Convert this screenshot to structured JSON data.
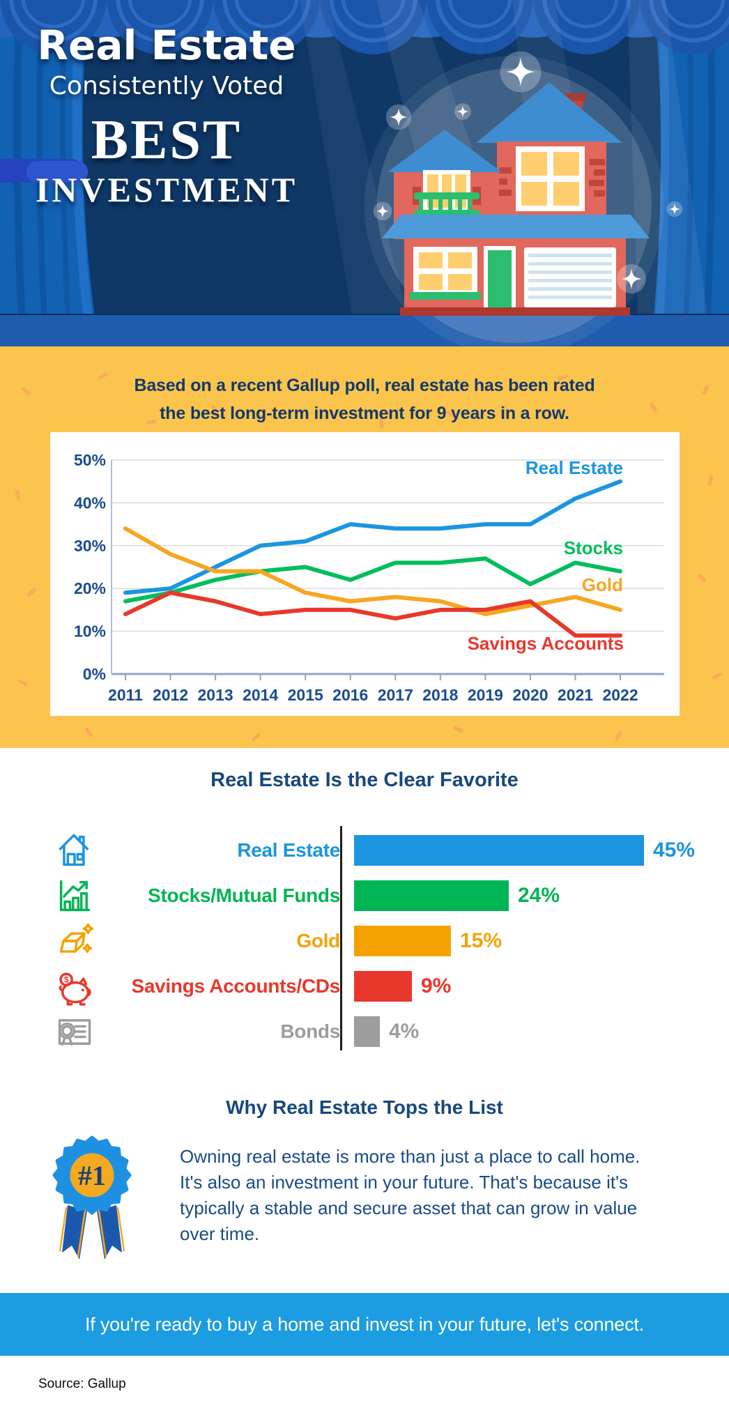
{
  "header": {
    "title_line1": "Real Estate",
    "title_line2": "Consistently Voted",
    "title_line3": "BEST",
    "title_line4": "INVESTMENT"
  },
  "poll": {
    "headline_line1": "Based on a recent Gallup poll, real estate has been rated",
    "headline_line2": "the best long-term investment for 9 years in a row."
  },
  "chart_data": [
    {
      "type": "line",
      "title": "Best long-term investment, Gallup poll trend",
      "x": [
        2011,
        2012,
        2013,
        2014,
        2015,
        2016,
        2017,
        2018,
        2019,
        2020,
        2021,
        2022
      ],
      "ylim": [
        0,
        50
      ],
      "yticks": [
        "0%",
        "10%",
        "20%",
        "30%",
        "40%",
        "50%"
      ],
      "grid": true,
      "legend_position": "inline-right",
      "series": [
        {
          "name": "Real Estate",
          "color": "#1B95E0",
          "values": [
            19,
            20,
            25,
            30,
            31,
            35,
            34,
            34,
            35,
            35,
            41,
            45
          ]
        },
        {
          "name": "Stocks",
          "color": "#00BE5C",
          "values": [
            17,
            19,
            22,
            24,
            25,
            22,
            26,
            26,
            27,
            21,
            26,
            24
          ]
        },
        {
          "name": "Gold",
          "color": "#F7A620",
          "values": [
            34,
            28,
            24,
            24,
            19,
            17,
            18,
            17,
            14,
            16,
            18,
            15
          ]
        },
        {
          "name": "Savings Accounts",
          "color": "#E8382B",
          "values": [
            14,
            19,
            17,
            14,
            15,
            15,
            13,
            15,
            15,
            17,
            9,
            9
          ]
        }
      ]
    },
    {
      "type": "bar",
      "title": "Real Estate Is the Clear Favorite",
      "categories": [
        "Real Estate",
        "Stocks/Mutual Funds",
        "Gold",
        "Savings Accounts/CDs",
        "Bonds"
      ],
      "values": [
        45,
        24,
        15,
        9,
        4
      ],
      "value_labels": [
        "45%",
        "24%",
        "15%",
        "9%",
        "4%"
      ],
      "colors": [
        "#1B95E0",
        "#00B554",
        "#F5A200",
        "#E8382B",
        "#9D9D9D"
      ],
      "icons": [
        "house-icon",
        "stock-growth-icon",
        "gold-bars-icon",
        "piggy-bank-icon",
        "bond-certificate-icon"
      ],
      "xlim": [
        0,
        45
      ]
    }
  ],
  "why": {
    "title": "Why Real Estate Tops the List",
    "badge_label": "#1",
    "body": "Owning real estate is more than just a place to call home. It's also an investment in your future. That's because it's typically a stable and secure asset that can grow in value over time."
  },
  "footer": {
    "cta": "If you're ready to buy a home and invest in your future, let's connect.",
    "source": "Source: Gallup"
  }
}
